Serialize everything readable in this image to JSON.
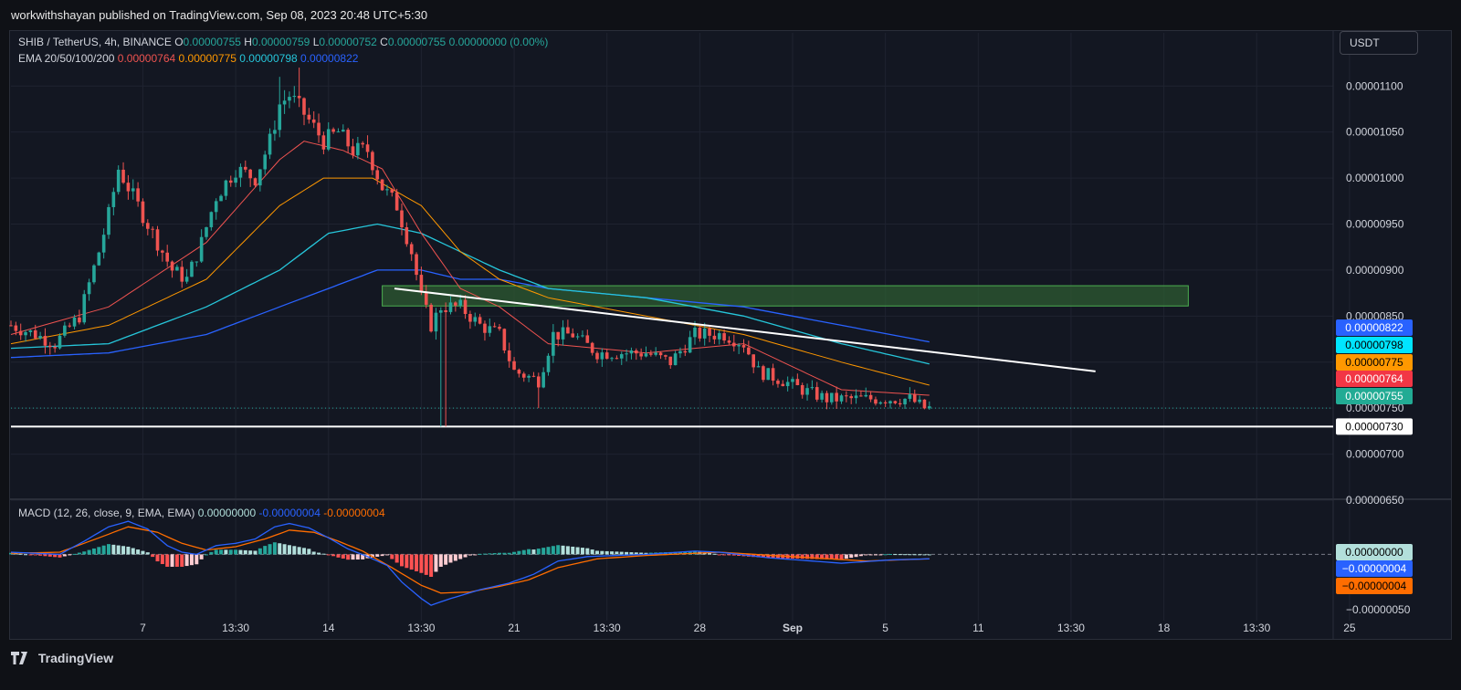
{
  "header": {
    "publisher": "workwithshayan published on TradingView.com, Sep 08, 2023 20:48 UTC+5:30"
  },
  "legend": {
    "symbol": "SHIB / TetherUS, 4h, BINANCE",
    "o_label": "O",
    "o": "0.00000755",
    "h_label": "H",
    "h": "0.00000759",
    "l_label": "L",
    "l": "0.00000752",
    "c_label": "C",
    "c": "0.00000755",
    "change": "0.00000000 (0.00%)",
    "ema_label": "EMA 20/50/100/200",
    "ema20": "0.00000764",
    "ema50": "0.00000775",
    "ema100": "0.00000798",
    "ema200": "0.00000822",
    "macd_label": "MACD (12, 26, close, 9, EMA, EMA)",
    "macd_hist": "0.00000000",
    "macd_line": "-0.00000004",
    "macd_signal": "-0.00000004"
  },
  "currency_button": "USDT",
  "footer": {
    "brand": "TradingView"
  },
  "colors": {
    "up": "#26a69a",
    "down": "#ef5350",
    "ema20": "#ef5350",
    "ema50": "#ff9800",
    "ema100": "#26c6da",
    "ema200": "#2962ff",
    "macd_line": "#2962ff",
    "macd_signal": "#ff6d00"
  },
  "chart_data": {
    "type": "candlestick",
    "price_axis": {
      "ticks": [
        "0.00001100",
        "0.00001050",
        "0.00001000",
        "0.00000950",
        "0.00000900",
        "0.00000850",
        "0.00000800",
        "0.00000750",
        "0.00000700",
        "0.00000650"
      ],
      "range": [
        6.5e-06,
        1.13e-05
      ]
    },
    "macd_axis": {
      "ticks": [
        "0.00000000",
        "-0.00000050"
      ],
      "range": [
        -6e-07,
        4.5e-07
      ]
    },
    "time_axis": {
      "labels": [
        "7",
        "13:30",
        "14",
        "13:30",
        "21",
        "13:30",
        "28",
        "Sep",
        "5",
        "11",
        "13:30",
        "18",
        "13:30",
        "25"
      ],
      "label_positions_in_bars": [
        27,
        46,
        65,
        84,
        103,
        122,
        141,
        160,
        179,
        198,
        217,
        236,
        255,
        274
      ]
    },
    "price_labels": [
      {
        "value": "0.00000822",
        "color": "#2962ff",
        "text_color": "#ffffff"
      },
      {
        "value": "0.00000798",
        "color": "#00e5ff",
        "text_color": "#000000"
      },
      {
        "value": "0.00000775",
        "color": "#ff9800",
        "text_color": "#000000"
      },
      {
        "value": "0.00000764",
        "color": "#f23645",
        "text_color": "#ffffff"
      },
      {
        "value": "0.00000755",
        "color": "#22ab94",
        "text_color": "#ffffff"
      },
      {
        "value": "0.00000730",
        "color": "#ffffff",
        "text_color": "#000000"
      }
    ],
    "macd_labels": [
      {
        "value": "0.00000000",
        "color": "#b2dfdb",
        "text_color": "#000000"
      },
      {
        "value": "−0.00000004",
        "color": "#2962ff",
        "text_color": "#ffffff"
      },
      {
        "value": "−0.00000004",
        "color": "#ff6d00",
        "text_color": "#000000"
      }
    ],
    "close_path": [
      [
        0,
        8.4e-06
      ],
      [
        5,
        8.3e-06
      ],
      [
        9,
        8.2e-06
      ],
      [
        14,
        8.5e-06
      ],
      [
        18,
        9.2e-06
      ],
      [
        20,
        9.6e-06
      ],
      [
        22,
        1.01e-05
      ],
      [
        24,
        9.9e-06
      ],
      [
        27,
        9.6e-06
      ],
      [
        30,
        9.3e-06
      ],
      [
        33,
        9e-06
      ],
      [
        36,
        8.9e-06
      ],
      [
        39,
        9.3e-06
      ],
      [
        42,
        9.8e-06
      ],
      [
        46,
        1.01e-05
      ],
      [
        50,
        1e-05
      ],
      [
        53,
        1.04e-05
      ],
      [
        55,
        1.08e-05
      ],
      [
        57,
        1.09e-05
      ],
      [
        60,
        1.07e-05
      ],
      [
        64,
        1.04e-05
      ],
      [
        67,
        1.05e-05
      ],
      [
        70,
        1.03e-05
      ],
      [
        73,
        1.03e-05
      ],
      [
        76,
        9.9e-06
      ],
      [
        79,
        9.7e-06
      ],
      [
        82,
        9.2e-06
      ],
      [
        84,
        8.7e-06
      ],
      [
        86,
        8.4e-06
      ],
      [
        88,
        8.6e-06
      ],
      [
        92,
        8.6e-06
      ],
      [
        96,
        8.4e-06
      ],
      [
        100,
        8.3e-06
      ],
      [
        103,
        7.9e-06
      ],
      [
        108,
        7.8e-06
      ],
      [
        111,
        8.3e-06
      ],
      [
        115,
        8.3e-06
      ],
      [
        120,
        8.1e-06
      ],
      [
        125,
        8.1e-06
      ],
      [
        130,
        8.1e-06
      ],
      [
        135,
        8e-06
      ],
      [
        140,
        8.3e-06
      ],
      [
        146,
        8.3e-06
      ],
      [
        150,
        8.2e-06
      ],
      [
        153,
        7.9e-06
      ],
      [
        158,
        7.8e-06
      ],
      [
        162,
        7.7e-06
      ],
      [
        167,
        7.6e-06
      ],
      [
        171,
        7.6e-06
      ],
      [
        176,
        7.6e-06
      ],
      [
        181,
        7.6e-06
      ],
      [
        184,
        7.6e-06
      ],
      [
        187,
        7.5e-06
      ],
      [
        188,
        7.5e-06
      ]
    ],
    "spikes": [
      {
        "bar": 55,
        "high": 1.11e-05
      },
      {
        "bar": 59,
        "high": 1.12e-05
      },
      {
        "bar": 88,
        "low": 7.3e-06
      },
      {
        "bar": 89,
        "low": 7.3e-06
      },
      {
        "bar": 108,
        "low": 7.5e-06
      }
    ],
    "ema_curves": {
      "ema20": [
        [
          0,
          8.3e-06
        ],
        [
          20,
          8.6e-06
        ],
        [
          40,
          9.3e-06
        ],
        [
          55,
          1.02e-05
        ],
        [
          60,
          1.04e-05
        ],
        [
          68,
          1.03e-05
        ],
        [
          76,
          1.01e-05
        ],
        [
          84,
          9.4e-06
        ],
        [
          92,
          8.8e-06
        ],
        [
          100,
          8.6e-06
        ],
        [
          110,
          8.2e-06
        ],
        [
          130,
          8.1e-06
        ],
        [
          150,
          8.2e-06
        ],
        [
          170,
          7.7e-06
        ],
        [
          188,
          7.64e-06
        ]
      ],
      "ema50": [
        [
          0,
          8.2e-06
        ],
        [
          20,
          8.4e-06
        ],
        [
          40,
          8.9e-06
        ],
        [
          55,
          9.7e-06
        ],
        [
          64,
          1e-05
        ],
        [
          74,
          1e-05
        ],
        [
          84,
          9.7e-06
        ],
        [
          92,
          9.2e-06
        ],
        [
          100,
          8.9e-06
        ],
        [
          110,
          8.7e-06
        ],
        [
          130,
          8.5e-06
        ],
        [
          150,
          8.3e-06
        ],
        [
          170,
          8e-06
        ],
        [
          188,
          7.75e-06
        ]
      ],
      "ema100": [
        [
          0,
          8.15e-06
        ],
        [
          20,
          8.2e-06
        ],
        [
          40,
          8.6e-06
        ],
        [
          55,
          9e-06
        ],
        [
          65,
          9.4e-06
        ],
        [
          75,
          9.5e-06
        ],
        [
          84,
          9.4e-06
        ],
        [
          92,
          9.2e-06
        ],
        [
          100,
          9e-06
        ],
        [
          110,
          8.8e-06
        ],
        [
          130,
          8.7e-06
        ],
        [
          150,
          8.5e-06
        ],
        [
          170,
          8.2e-06
        ],
        [
          188,
          7.98e-06
        ]
      ],
      "ema200": [
        [
          0,
          8.05e-06
        ],
        [
          20,
          8.1e-06
        ],
        [
          40,
          8.3e-06
        ],
        [
          55,
          8.6e-06
        ],
        [
          65,
          8.8e-06
        ],
        [
          75,
          9e-06
        ],
        [
          84,
          9e-06
        ],
        [
          92,
          8.9e-06
        ],
        [
          100,
          8.9e-06
        ],
        [
          110,
          8.8e-06
        ],
        [
          130,
          8.7e-06
        ],
        [
          150,
          8.6e-06
        ],
        [
          170,
          8.4e-06
        ],
        [
          188,
          8.22e-06
        ]
      ]
    },
    "trendline": {
      "from": [
        78.5,
        8.8e-06
      ],
      "to": [
        222,
        7.9e-06
      ]
    },
    "horizontal_line": {
      "value": 7.3e-06
    },
    "zone": {
      "from_bar": 76,
      "to_bar": 241,
      "top": 8.83e-06,
      "bottom": 8.61e-06
    },
    "macd_path": [
      [
        0,
        2e-08
      ],
      [
        5,
        1e-08
      ],
      [
        10,
        0.0
      ],
      [
        15,
        1.2e-07
      ],
      [
        20,
        2.5e-07
      ],
      [
        24,
        3e-07
      ],
      [
        28,
        2.3e-07
      ],
      [
        32,
        8e-08
      ],
      [
        35,
        2e-08
      ],
      [
        38,
        0.0
      ],
      [
        42,
        8e-08
      ],
      [
        46,
        1e-07
      ],
      [
        50,
        1.4e-07
      ],
      [
        54,
        2.5e-07
      ],
      [
        57,
        2.8e-07
      ],
      [
        61,
        2.4e-07
      ],
      [
        65,
        1.5e-07
      ],
      [
        69,
        5e-08
      ],
      [
        73,
        -2e-08
      ],
      [
        77,
        -1e-07
      ],
      [
        80,
        -2.5e-07
      ],
      [
        84,
        -4e-07
      ],
      [
        86,
        -4.6e-07
      ],
      [
        90,
        -4e-07
      ],
      [
        96,
        -3.2e-07
      ],
      [
        102,
        -2.6e-07
      ],
      [
        107,
        -1.8e-07
      ],
      [
        112,
        -6e-08
      ],
      [
        118,
        -2e-08
      ],
      [
        130,
        0.0
      ],
      [
        140,
        3e-08
      ],
      [
        145,
        2e-08
      ],
      [
        155,
        -3e-08
      ],
      [
        170,
        -8e-08
      ],
      [
        180,
        -5e-08
      ],
      [
        188,
        -4e-08
      ]
    ],
    "signal_path": [
      [
        0,
        1e-08
      ],
      [
        10,
        2e-08
      ],
      [
        18,
        1.5e-07
      ],
      [
        24,
        2.5e-07
      ],
      [
        30,
        2e-07
      ],
      [
        35,
        1e-07
      ],
      [
        40,
        4e-08
      ],
      [
        46,
        7e-08
      ],
      [
        52,
        1.4e-07
      ],
      [
        57,
        2.2e-07
      ],
      [
        62,
        2e-07
      ],
      [
        67,
        1.2e-07
      ],
      [
        72,
        3e-08
      ],
      [
        78,
        -1.2e-07
      ],
      [
        84,
        -2.8e-07
      ],
      [
        88,
        -3.5e-07
      ],
      [
        94,
        -3.4e-07
      ],
      [
        100,
        -2.9e-07
      ],
      [
        106,
        -2.3e-07
      ],
      [
        112,
        -1.2e-07
      ],
      [
        120,
        -4e-08
      ],
      [
        130,
        -1e-08
      ],
      [
        145,
        2e-08
      ],
      [
        160,
        -2e-08
      ],
      [
        175,
        -6e-08
      ],
      [
        188,
        -4e-08
      ]
    ]
  }
}
